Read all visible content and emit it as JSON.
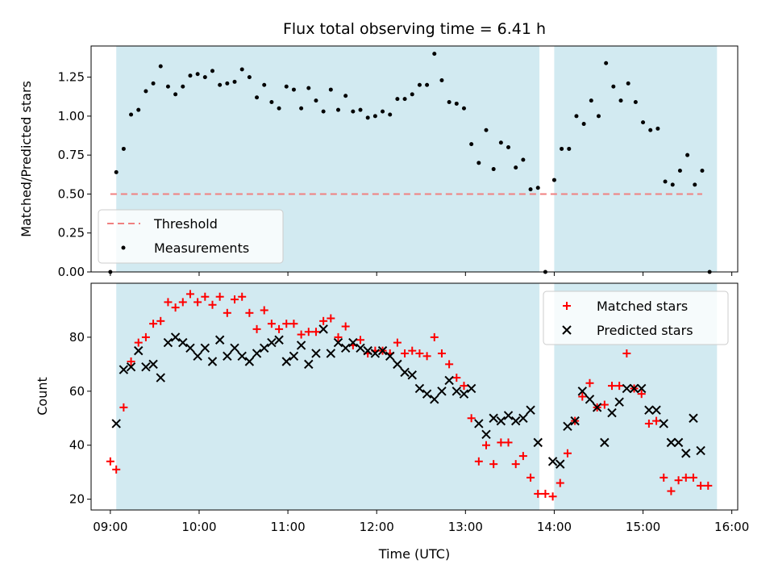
{
  "colors": {
    "band": "#add8e6",
    "threshold": "#f08080",
    "measurements": "#000000",
    "matched": "#ff0000",
    "predicted": "#000000"
  },
  "chart_data": [
    {
      "type": "scatter",
      "title": "Flux total observing time = 6.41 h",
      "xlabel": "",
      "ylabel": "Matched/Predicted stars",
      "xlim": [
        "08:47",
        "16:04"
      ],
      "ylim": [
        0,
        1.45
      ],
      "yticks": [
        0.0,
        0.25,
        0.5,
        0.75,
        1.0,
        1.25
      ],
      "ytick_labels": [
        "0.00",
        "0.25",
        "0.50",
        "0.75",
        "1.00",
        "1.25"
      ],
      "xticks": [
        "09:00",
        "10:00",
        "11:00",
        "12:00",
        "13:00",
        "14:00",
        "15:00",
        "16:00"
      ],
      "observing_windows": [
        [
          "09:04",
          "13:50"
        ],
        [
          "14:00",
          "15:50"
        ]
      ],
      "threshold": {
        "name": "Threshold",
        "y": 0.5,
        "x_range": [
          "09:00",
          "15:40"
        ]
      },
      "legend": {
        "location": "lower left",
        "entries": [
          "Threshold",
          "Measurements"
        ]
      },
      "series": [
        {
          "name": "Measurements",
          "marker": "dot",
          "points": [
            [
              "09:00",
              0.0
            ],
            [
              "09:04",
              0.64
            ],
            [
              "09:09",
              0.79
            ],
            [
              "09:14",
              1.01
            ],
            [
              "09:19",
              1.04
            ],
            [
              "09:24",
              1.16
            ],
            [
              "09:29",
              1.21
            ],
            [
              "09:34",
              1.32
            ],
            [
              "09:39",
              1.19
            ],
            [
              "09:44",
              1.14
            ],
            [
              "09:49",
              1.19
            ],
            [
              "09:54",
              1.26
            ],
            [
              "09:59",
              1.27
            ],
            [
              "10:04",
              1.25
            ],
            [
              "10:09",
              1.29
            ],
            [
              "10:14",
              1.2
            ],
            [
              "10:19",
              1.21
            ],
            [
              "10:24",
              1.22
            ],
            [
              "10:29",
              1.3
            ],
            [
              "10:34",
              1.25
            ],
            [
              "10:39",
              1.12
            ],
            [
              "10:44",
              1.2
            ],
            [
              "10:49",
              1.09
            ],
            [
              "10:54",
              1.05
            ],
            [
              "10:59",
              1.19
            ],
            [
              "11:04",
              1.17
            ],
            [
              "11:09",
              1.05
            ],
            [
              "11:14",
              1.18
            ],
            [
              "11:19",
              1.1
            ],
            [
              "11:24",
              1.03
            ],
            [
              "11:29",
              1.17
            ],
            [
              "11:34",
              1.04
            ],
            [
              "11:39",
              1.13
            ],
            [
              "11:44",
              1.03
            ],
            [
              "11:49",
              1.04
            ],
            [
              "11:54",
              0.99
            ],
            [
              "11:59",
              1.0
            ],
            [
              "12:04",
              1.03
            ],
            [
              "12:09",
              1.01
            ],
            [
              "12:14",
              1.11
            ],
            [
              "12:19",
              1.11
            ],
            [
              "12:24",
              1.14
            ],
            [
              "12:29",
              1.2
            ],
            [
              "12:34",
              1.2
            ],
            [
              "12:39",
              1.4
            ],
            [
              "12:44",
              1.23
            ],
            [
              "12:49",
              1.09
            ],
            [
              "12:54",
              1.08
            ],
            [
              "12:59",
              1.05
            ],
            [
              "13:04",
              0.82
            ],
            [
              "13:09",
              0.7
            ],
            [
              "13:14",
              0.91
            ],
            [
              "13:19",
              0.66
            ],
            [
              "13:24",
              0.83
            ],
            [
              "13:29",
              0.8
            ],
            [
              "13:34",
              0.67
            ],
            [
              "13:39",
              0.72
            ],
            [
              "13:44",
              0.53
            ],
            [
              "13:49",
              0.54
            ],
            [
              "13:54",
              0.0
            ],
            [
              "14:00",
              0.59
            ],
            [
              "14:05",
              0.79
            ],
            [
              "14:10",
              0.79
            ],
            [
              "14:15",
              1.0
            ],
            [
              "14:20",
              0.95
            ],
            [
              "14:25",
              1.1
            ],
            [
              "14:30",
              1.0
            ],
            [
              "14:35",
              1.34
            ],
            [
              "14:40",
              1.19
            ],
            [
              "14:45",
              1.1
            ],
            [
              "14:50",
              1.21
            ],
            [
              "14:55",
              1.09
            ],
            [
              "15:00",
              0.96
            ],
            [
              "15:05",
              0.91
            ],
            [
              "15:10",
              0.92
            ],
            [
              "15:15",
              0.58
            ],
            [
              "15:20",
              0.56
            ],
            [
              "15:25",
              0.65
            ],
            [
              "15:30",
              0.75
            ],
            [
              "15:35",
              0.56
            ],
            [
              "15:40",
              0.65
            ],
            [
              "15:45",
              0.0
            ]
          ]
        }
      ]
    },
    {
      "type": "scatter",
      "title": "",
      "xlabel": "Time (UTC)",
      "ylabel": "Count",
      "xlim": [
        "08:47",
        "16:04"
      ],
      "ylim": [
        16,
        100
      ],
      "yticks": [
        20,
        40,
        60,
        80
      ],
      "ytick_labels": [
        "20",
        "40",
        "60",
        "80"
      ],
      "xticks": [
        "09:00",
        "10:00",
        "11:00",
        "12:00",
        "13:00",
        "14:00",
        "15:00",
        "16:00"
      ],
      "xtick_labels": [
        "09:00",
        "10:00",
        "11:00",
        "12:00",
        "13:00",
        "14:00",
        "15:00",
        "16:00"
      ],
      "observing_windows": [
        [
          "09:04",
          "13:50"
        ],
        [
          "14:00",
          "15:50"
        ]
      ],
      "legend": {
        "location": "upper right",
        "entries": [
          "Matched stars",
          "Predicted stars"
        ]
      },
      "series": [
        {
          "name": "Matched stars",
          "marker": "plus",
          "points": [
            [
              "09:00",
              34
            ],
            [
              "09:04",
              31
            ],
            [
              "09:09",
              54
            ],
            [
              "09:14",
              71
            ],
            [
              "09:19",
              78
            ],
            [
              "09:24",
              80
            ],
            [
              "09:29",
              85
            ],
            [
              "09:34",
              86
            ],
            [
              "09:39",
              93
            ],
            [
              "09:44",
              91
            ],
            [
              "09:49",
              93
            ],
            [
              "09:54",
              96
            ],
            [
              "09:59",
              93
            ],
            [
              "10:04",
              95
            ],
            [
              "10:09",
              92
            ],
            [
              "10:14",
              95
            ],
            [
              "10:19",
              89
            ],
            [
              "10:24",
              94
            ],
            [
              "10:29",
              95
            ],
            [
              "10:34",
              89
            ],
            [
              "10:39",
              83
            ],
            [
              "10:44",
              90
            ],
            [
              "10:49",
              85
            ],
            [
              "10:54",
              83
            ],
            [
              "10:59",
              85
            ],
            [
              "11:04",
              85
            ],
            [
              "11:09",
              81
            ],
            [
              "11:14",
              82
            ],
            [
              "11:19",
              82
            ],
            [
              "11:24",
              86
            ],
            [
              "11:29",
              87
            ],
            [
              "11:34",
              80
            ],
            [
              "11:39",
              84
            ],
            [
              "11:44",
              77
            ],
            [
              "11:49",
              79
            ],
            [
              "11:54",
              74
            ],
            [
              "11:59",
              75
            ],
            [
              "12:04",
              75
            ],
            [
              "12:09",
              74
            ],
            [
              "12:14",
              78
            ],
            [
              "12:19",
              74
            ],
            [
              "12:24",
              75
            ],
            [
              "12:29",
              74
            ],
            [
              "12:34",
              73
            ],
            [
              "12:39",
              80
            ],
            [
              "12:44",
              74
            ],
            [
              "12:49",
              70
            ],
            [
              "12:54",
              65
            ],
            [
              "12:59",
              62
            ],
            [
              "13:04",
              50
            ],
            [
              "13:09",
              34
            ],
            [
              "13:14",
              40
            ],
            [
              "13:19",
              33
            ],
            [
              "13:24",
              41
            ],
            [
              "13:29",
              41
            ],
            [
              "13:34",
              33
            ],
            [
              "13:39",
              36
            ],
            [
              "13:44",
              28
            ],
            [
              "13:49",
              22
            ],
            [
              "13:54",
              22
            ],
            [
              "13:59",
              21
            ],
            [
              "14:04",
              26
            ],
            [
              "14:09",
              37
            ],
            [
              "14:14",
              49
            ],
            [
              "14:19",
              58
            ],
            [
              "14:24",
              63
            ],
            [
              "14:29",
              54
            ],
            [
              "14:34",
              55
            ],
            [
              "14:39",
              62
            ],
            [
              "14:44",
              62
            ],
            [
              "14:49",
              74
            ],
            [
              "14:54",
              61
            ],
            [
              "14:59",
              59
            ],
            [
              "15:04",
              48
            ],
            [
              "15:09",
              49
            ],
            [
              "15:14",
              28
            ],
            [
              "15:19",
              23
            ],
            [
              "15:24",
              27
            ],
            [
              "15:29",
              28
            ],
            [
              "15:34",
              28
            ],
            [
              "15:39",
              25
            ],
            [
              "15:44",
              25
            ]
          ]
        },
        {
          "name": "Predicted stars",
          "marker": "x",
          "points": [
            [
              "09:04",
              48
            ],
            [
              "09:09",
              68
            ],
            [
              "09:14",
              69
            ],
            [
              "09:19",
              75
            ],
            [
              "09:24",
              69
            ],
            [
              "09:29",
              70
            ],
            [
              "09:34",
              65
            ],
            [
              "09:39",
              78
            ],
            [
              "09:44",
              80
            ],
            [
              "09:49",
              78
            ],
            [
              "09:54",
              76
            ],
            [
              "09:59",
              73
            ],
            [
              "10:04",
              76
            ],
            [
              "10:09",
              71
            ],
            [
              "10:14",
              79
            ],
            [
              "10:19",
              73
            ],
            [
              "10:24",
              76
            ],
            [
              "10:29",
              73
            ],
            [
              "10:34",
              71
            ],
            [
              "10:39",
              74
            ],
            [
              "10:44",
              76
            ],
            [
              "10:49",
              78
            ],
            [
              "10:54",
              79
            ],
            [
              "10:59",
              71
            ],
            [
              "11:04",
              73
            ],
            [
              "11:09",
              77
            ],
            [
              "11:14",
              70
            ],
            [
              "11:19",
              74
            ],
            [
              "11:24",
              83
            ],
            [
              "11:29",
              74
            ],
            [
              "11:34",
              78
            ],
            [
              "11:39",
              76
            ],
            [
              "11:44",
              78
            ],
            [
              "11:49",
              76
            ],
            [
              "11:54",
              75
            ],
            [
              "11:59",
              74
            ],
            [
              "12:04",
              75
            ],
            [
              "12:09",
              73
            ],
            [
              "12:14",
              70
            ],
            [
              "12:19",
              67
            ],
            [
              "12:24",
              66
            ],
            [
              "12:29",
              61
            ],
            [
              "12:34",
              59
            ],
            [
              "12:39",
              57
            ],
            [
              "12:44",
              60
            ],
            [
              "12:49",
              64
            ],
            [
              "12:54",
              60
            ],
            [
              "12:59",
              59
            ],
            [
              "13:04",
              61
            ],
            [
              "13:09",
              48
            ],
            [
              "13:14",
              44
            ],
            [
              "13:19",
              50
            ],
            [
              "13:24",
              49
            ],
            [
              "13:29",
              51
            ],
            [
              "13:34",
              49
            ],
            [
              "13:39",
              50
            ],
            [
              "13:44",
              53
            ],
            [
              "13:49",
              41
            ],
            [
              "13:59",
              34
            ],
            [
              "14:04",
              33
            ],
            [
              "14:09",
              47
            ],
            [
              "14:14",
              49
            ],
            [
              "14:19",
              60
            ],
            [
              "14:24",
              57
            ],
            [
              "14:29",
              54
            ],
            [
              "14:34",
              41
            ],
            [
              "14:39",
              52
            ],
            [
              "14:44",
              56
            ],
            [
              "14:49",
              61
            ],
            [
              "14:54",
              61
            ],
            [
              "14:59",
              61
            ],
            [
              "15:04",
              53
            ],
            [
              "15:09",
              53
            ],
            [
              "15:14",
              48
            ],
            [
              "15:19",
              41
            ],
            [
              "15:24",
              41
            ],
            [
              "15:29",
              37
            ],
            [
              "15:34",
              50
            ],
            [
              "15:39",
              38
            ]
          ]
        }
      ]
    }
  ]
}
